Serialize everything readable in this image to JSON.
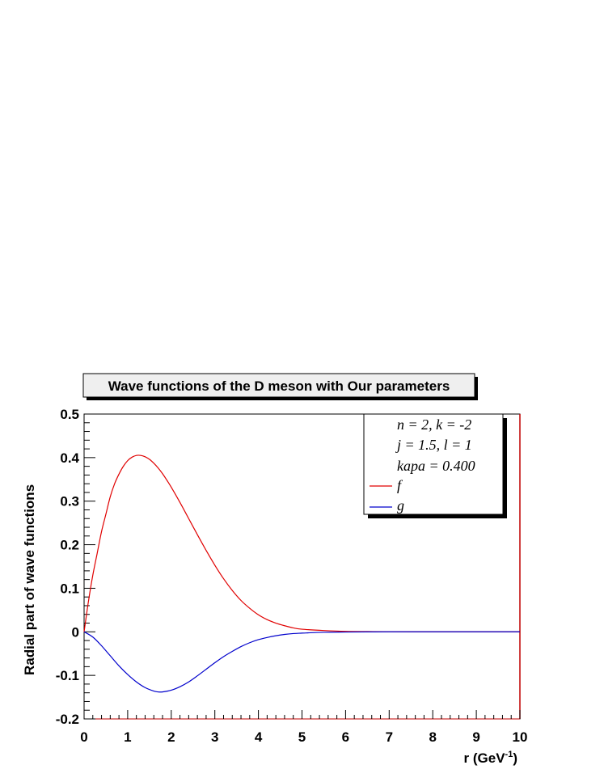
{
  "chart_data": {
    "type": "line",
    "title": "Wave functions of the D meson with Our parameters",
    "xlabel": "r (GeV",
    "xlabel_sup": "-1",
    "xlabel_close": ")",
    "ylabel": "Radial part of wave functions",
    "xlim": [
      0,
      10
    ],
    "ylim": [
      -0.2,
      0.5
    ],
    "x_ticks": [
      "0",
      "1",
      "2",
      "3",
      "4",
      "5",
      "6",
      "7",
      "8",
      "9",
      "10"
    ],
    "y_ticks": [
      "0.5",
      "0.4",
      "0.3",
      "0.2",
      "0.1",
      "0",
      "-0.1",
      "-0.2"
    ],
    "info_lines": [
      "n = 2, k = -2",
      "j = 1.5, l = 1",
      "kapa = 0.400"
    ],
    "legend_position": "top-right",
    "series": [
      {
        "name": "f",
        "color": "#e00000",
        "x": [
          0,
          0.1,
          0.2,
          0.3,
          0.4,
          0.5,
          0.6,
          0.7,
          0.8,
          0.9,
          1.0,
          1.1,
          1.2,
          1.3,
          1.4,
          1.5,
          1.6,
          1.7,
          1.8,
          1.9,
          2.0,
          2.2,
          2.4,
          2.6,
          2.8,
          3.0,
          3.2,
          3.4,
          3.6,
          3.8,
          4.0,
          4.2,
          4.4,
          4.6,
          4.8,
          5.0,
          5.5,
          6.0,
          6.5,
          7.0,
          8.0,
          9.0,
          10.0
        ],
        "y": [
          0,
          0.07,
          0.13,
          0.18,
          0.23,
          0.27,
          0.31,
          0.34,
          0.362,
          0.38,
          0.393,
          0.401,
          0.405,
          0.405,
          0.402,
          0.396,
          0.387,
          0.376,
          0.363,
          0.348,
          0.332,
          0.297,
          0.26,
          0.223,
          0.187,
          0.153,
          0.122,
          0.095,
          0.072,
          0.054,
          0.039,
          0.028,
          0.02,
          0.014,
          0.009,
          0.006,
          0.003,
          0.001,
          0.0005,
          0.0002,
          0.0,
          0.0,
          0.0
        ]
      },
      {
        "name": "g",
        "color": "#0000cc",
        "x": [
          0,
          0.2,
          0.4,
          0.6,
          0.8,
          1.0,
          1.2,
          1.4,
          1.6,
          1.7,
          1.8,
          2.0,
          2.2,
          2.4,
          2.6,
          2.8,
          3.0,
          3.2,
          3.4,
          3.6,
          3.8,
          4.0,
          4.2,
          4.4,
          4.6,
          4.8,
          5.0,
          5.5,
          6.0,
          6.5,
          7.0,
          8.0,
          9.0,
          10.0
        ],
        "y": [
          0,
          -0.012,
          -0.032,
          -0.055,
          -0.078,
          -0.098,
          -0.115,
          -0.128,
          -0.136,
          -0.138,
          -0.138,
          -0.134,
          -0.126,
          -0.115,
          -0.101,
          -0.086,
          -0.071,
          -0.057,
          -0.045,
          -0.034,
          -0.025,
          -0.018,
          -0.013,
          -0.009,
          -0.006,
          -0.004,
          -0.003,
          -0.001,
          -0.0005,
          -0.0002,
          0.0,
          0.0,
          0.0,
          0.0
        ]
      }
    ]
  }
}
